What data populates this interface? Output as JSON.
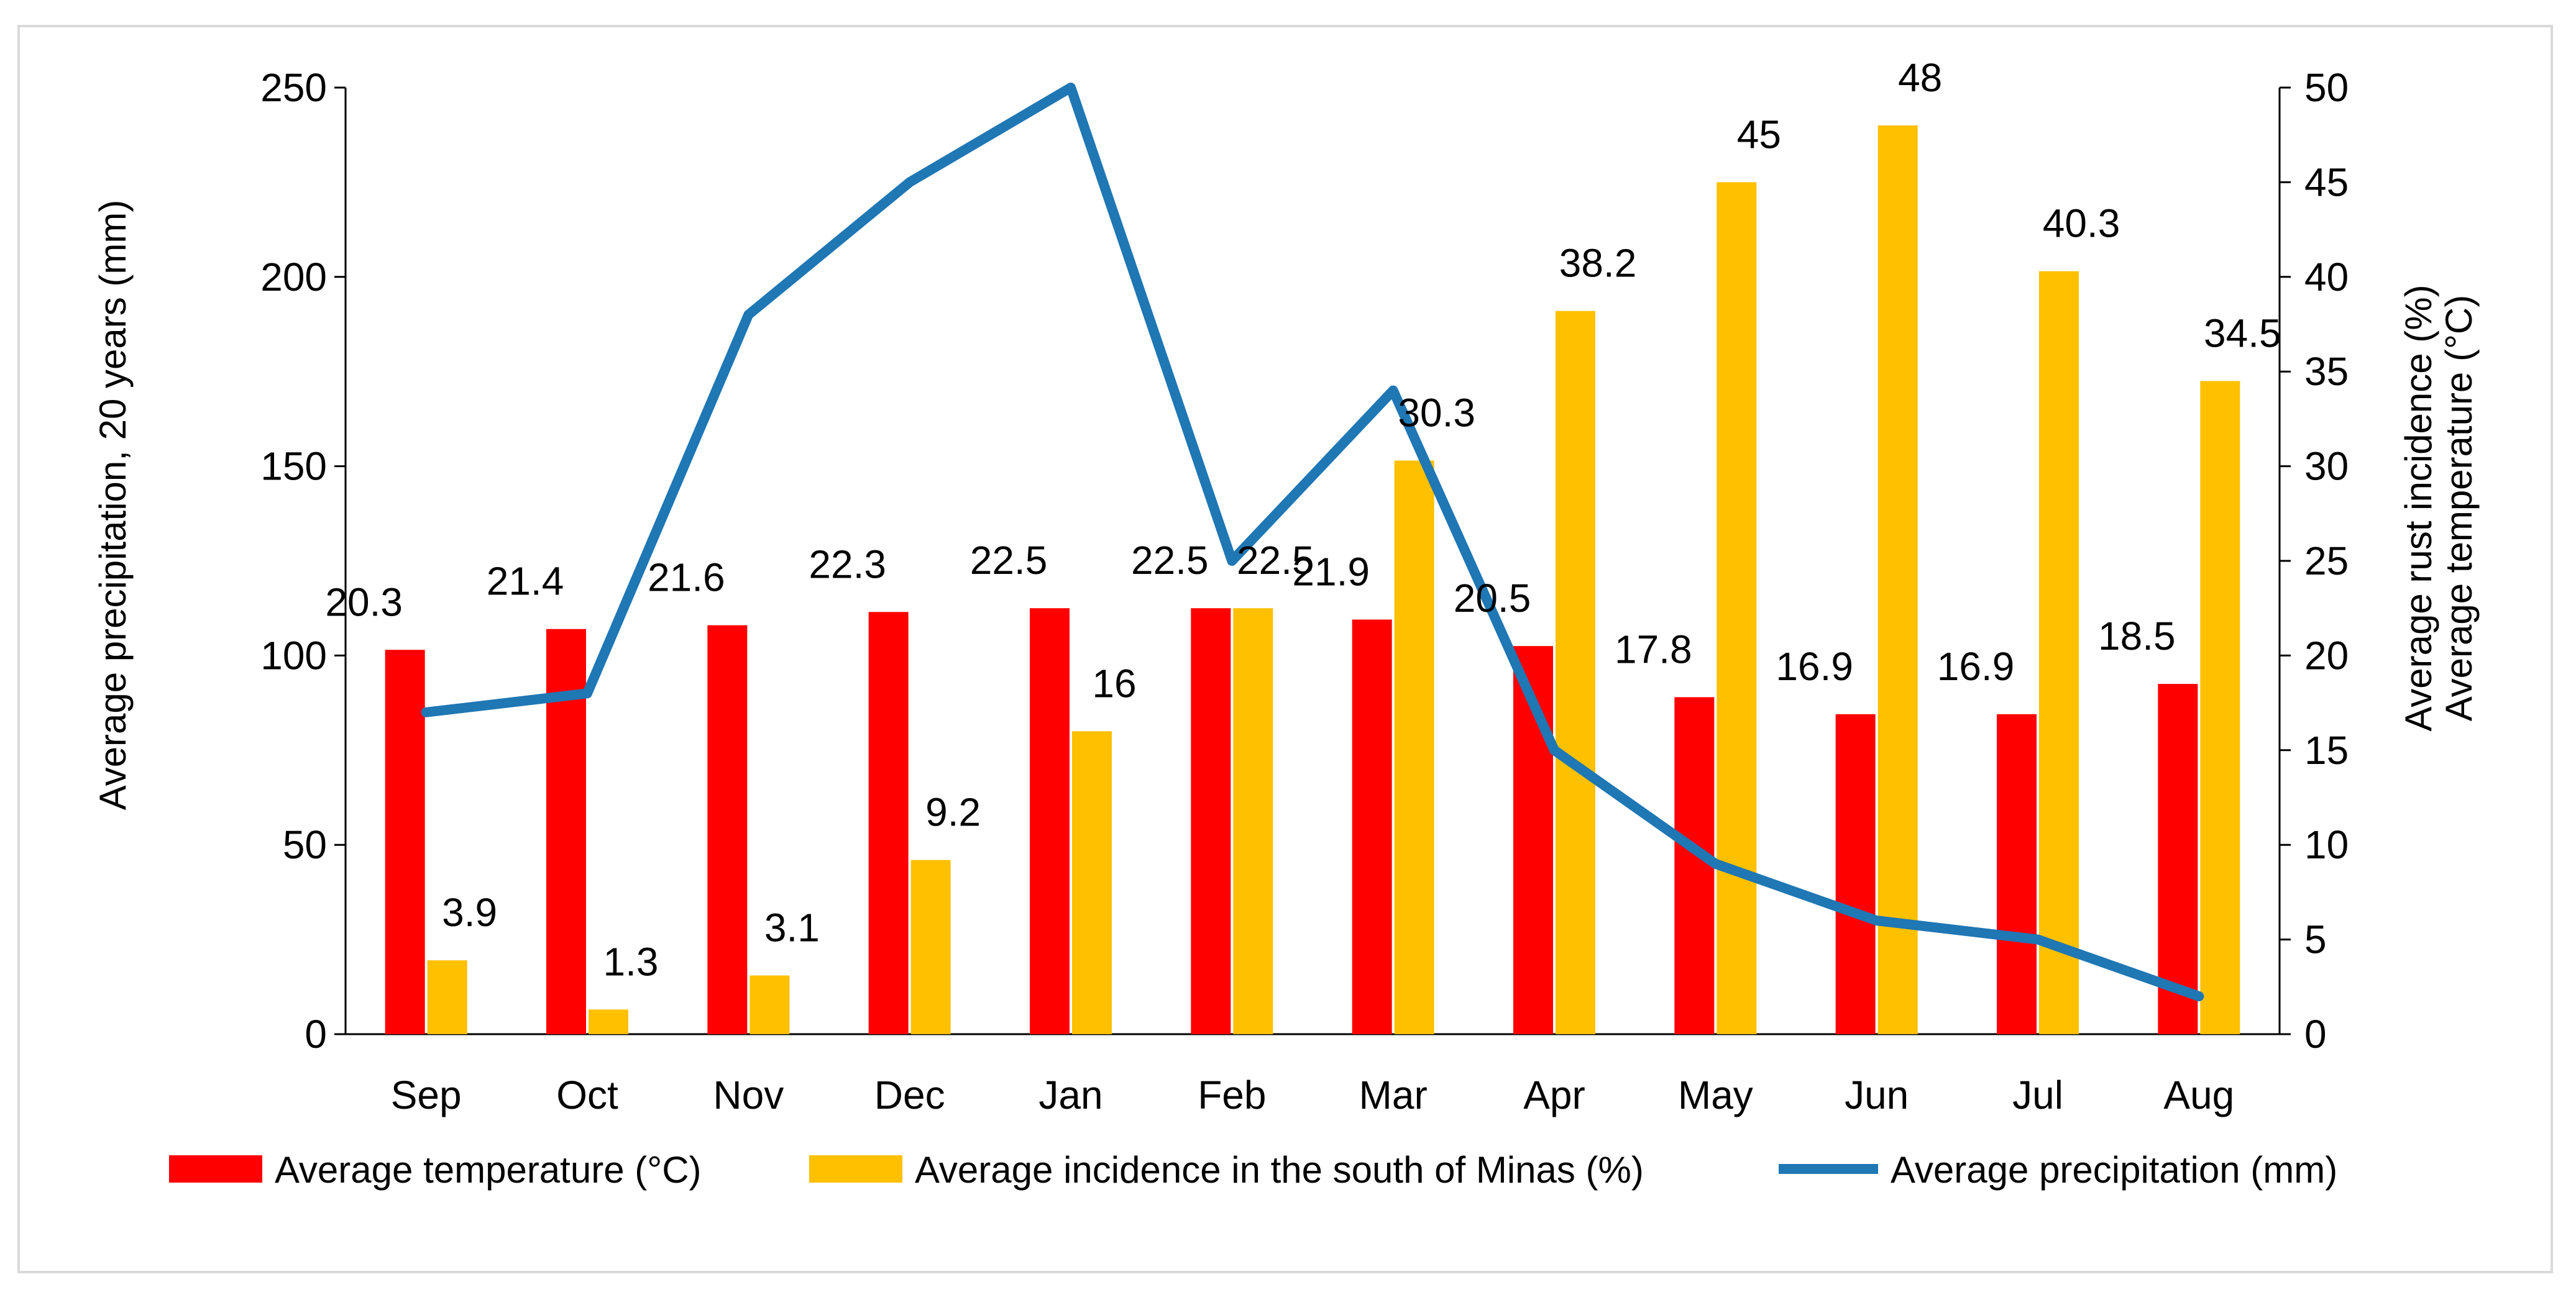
{
  "chart_data": {
    "type": "bar",
    "categories": [
      "Sep",
      "Oct",
      "Nov",
      "Dec",
      "Jan",
      "Feb",
      "Mar",
      "Apr",
      "May",
      "Jun",
      "Jul",
      "Aug"
    ],
    "series": [
      {
        "name": "Average temperature (°C)",
        "kind": "bar",
        "axis": "right",
        "color": "#ff0000",
        "values": [
          20.3,
          21.4,
          21.6,
          22.3,
          22.5,
          22.5,
          21.9,
          20.5,
          17.8,
          16.9,
          16.9,
          18.5
        ],
        "labels": [
          "20.3",
          "21.4",
          "21.6",
          "22.3",
          "22.5",
          "22.5",
          "21.9",
          "20.5",
          "17.8",
          "16.9",
          "16.9",
          "18.5"
        ]
      },
      {
        "name": "Average incidence in the south of Minas (%)",
        "kind": "bar",
        "axis": "right",
        "color": "#ffc000",
        "values": [
          3.9,
          1.3,
          3.1,
          9.2,
          16,
          22.5,
          30.3,
          38.2,
          45,
          48,
          40.3,
          34.5
        ],
        "labels": [
          "3.9",
          "1.3",
          "3.1",
          "9.2",
          "16",
          "22.5",
          "30.3",
          "38.2",
          "45",
          "48",
          "40.3",
          "34.5"
        ]
      },
      {
        "name": "Average precipitation (mm)",
        "kind": "line",
        "axis": "left",
        "color": "#1f77b4",
        "values": [
          85,
          90,
          190,
          225,
          250,
          125,
          170,
          75,
          45,
          30,
          25,
          10
        ]
      }
    ],
    "left_axis": {
      "label": "Average precipitation, 20 years (mm)",
      "min": 0,
      "max": 250,
      "ticks": [
        "0",
        "50",
        "100",
        "150",
        "200",
        "250"
      ],
      "tick_values": [
        0,
        50,
        100,
        150,
        200,
        250
      ]
    },
    "right_axis": {
      "label_line1": "Average rust incidence (%)",
      "label_line2": "Average temperature (°C)",
      "min": 0,
      "max": 50,
      "ticks": [
        "0",
        "5",
        "10",
        "15",
        "20",
        "25",
        "30",
        "35",
        "40",
        "45",
        "50"
      ],
      "tick_values": [
        0,
        5,
        10,
        15,
        20,
        25,
        30,
        35,
        40,
        45,
        50
      ]
    },
    "legend": {
      "placement": "bottom",
      "items": [
        {
          "label": "Average temperature (°C)",
          "kind": "bar",
          "color": "#ff0000"
        },
        {
          "label": "Average incidence in the south of Minas (%)",
          "kind": "bar",
          "color": "#ffc000"
        },
        {
          "label": "Average precipitation (mm)",
          "kind": "line",
          "color": "#1f77b4"
        }
      ]
    },
    "grid": false
  }
}
